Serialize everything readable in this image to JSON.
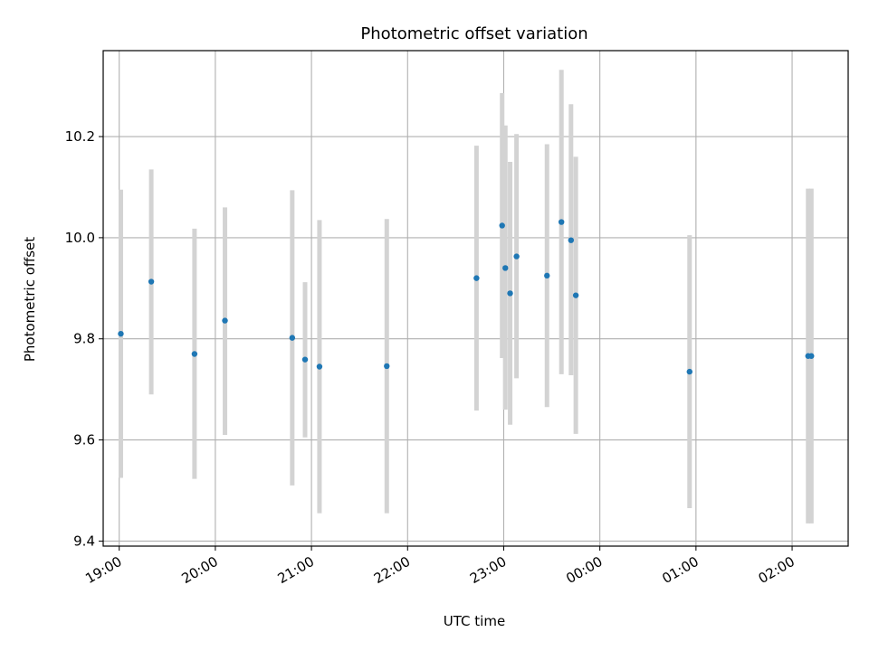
{
  "chart_data": {
    "type": "scatter",
    "title": "Photometric offset variation",
    "xlabel": "UTC time",
    "ylabel": "Photometric offset",
    "ylim": [
      9.39,
      10.37
    ],
    "xlim": [
      "18:50",
      "02:35"
    ],
    "xticks": [
      "19:00",
      "20:00",
      "21:00",
      "22:00",
      "23:00",
      "00:00",
      "01:00",
      "02:00"
    ],
    "yticks": [
      9.4,
      9.6,
      9.8,
      10.0,
      10.2
    ],
    "grid": true,
    "colors": {
      "point": "#1f77b4",
      "errorbar": "#d3d3d3",
      "grid": "#b0b0b0"
    },
    "series": [
      {
        "points": [
          {
            "x": "19:01",
            "y": 9.81,
            "ylow": 9.525,
            "yhigh": 10.095
          },
          {
            "x": "19:20",
            "y": 9.913,
            "ylow": 9.69,
            "yhigh": 10.135
          },
          {
            "x": "19:47",
            "y": 9.77,
            "ylow": 9.523,
            "yhigh": 10.018
          },
          {
            "x": "20:06",
            "y": 9.836,
            "ylow": 9.61,
            "yhigh": 10.06
          },
          {
            "x": "20:48",
            "y": 9.802,
            "ylow": 9.51,
            "yhigh": 10.094
          },
          {
            "x": "20:56",
            "y": 9.759,
            "ylow": 9.605,
            "yhigh": 9.912
          },
          {
            "x": "21:05",
            "y": 9.745,
            "ylow": 9.455,
            "yhigh": 10.035
          },
          {
            "x": "21:47",
            "y": 9.746,
            "ylow": 9.455,
            "yhigh": 10.037
          },
          {
            "x": "22:43",
            "y": 9.92,
            "ylow": 9.658,
            "yhigh": 10.182
          },
          {
            "x": "22:59",
            "y": 10.024,
            "ylow": 9.762,
            "yhigh": 10.286
          },
          {
            "x": "23:01",
            "y": 9.94,
            "ylow": 9.66,
            "yhigh": 10.222
          },
          {
            "x": "23:04",
            "y": 9.89,
            "ylow": 9.63,
            "yhigh": 10.15
          },
          {
            "x": "23:08",
            "y": 9.963,
            "ylow": 9.722,
            "yhigh": 10.205
          },
          {
            "x": "23:27",
            "y": 9.925,
            "ylow": 9.665,
            "yhigh": 10.185
          },
          {
            "x": "23:36",
            "y": 10.031,
            "ylow": 9.73,
            "yhigh": 10.332
          },
          {
            "x": "23:42",
            "y": 9.995,
            "ylow": 9.728,
            "yhigh": 10.264
          },
          {
            "x": "23:45",
            "y": 9.886,
            "ylow": 9.612,
            "yhigh": 10.16
          },
          {
            "x": "00:56",
            "y": 9.735,
            "ylow": 9.465,
            "yhigh": 10.005
          },
          {
            "x": "02:10",
            "y": 9.766,
            "ylow": 9.435,
            "yhigh": 10.097
          },
          {
            "x": "02:12",
            "y": 9.766,
            "ylow": 9.435,
            "yhigh": 10.097
          }
        ]
      }
    ]
  }
}
